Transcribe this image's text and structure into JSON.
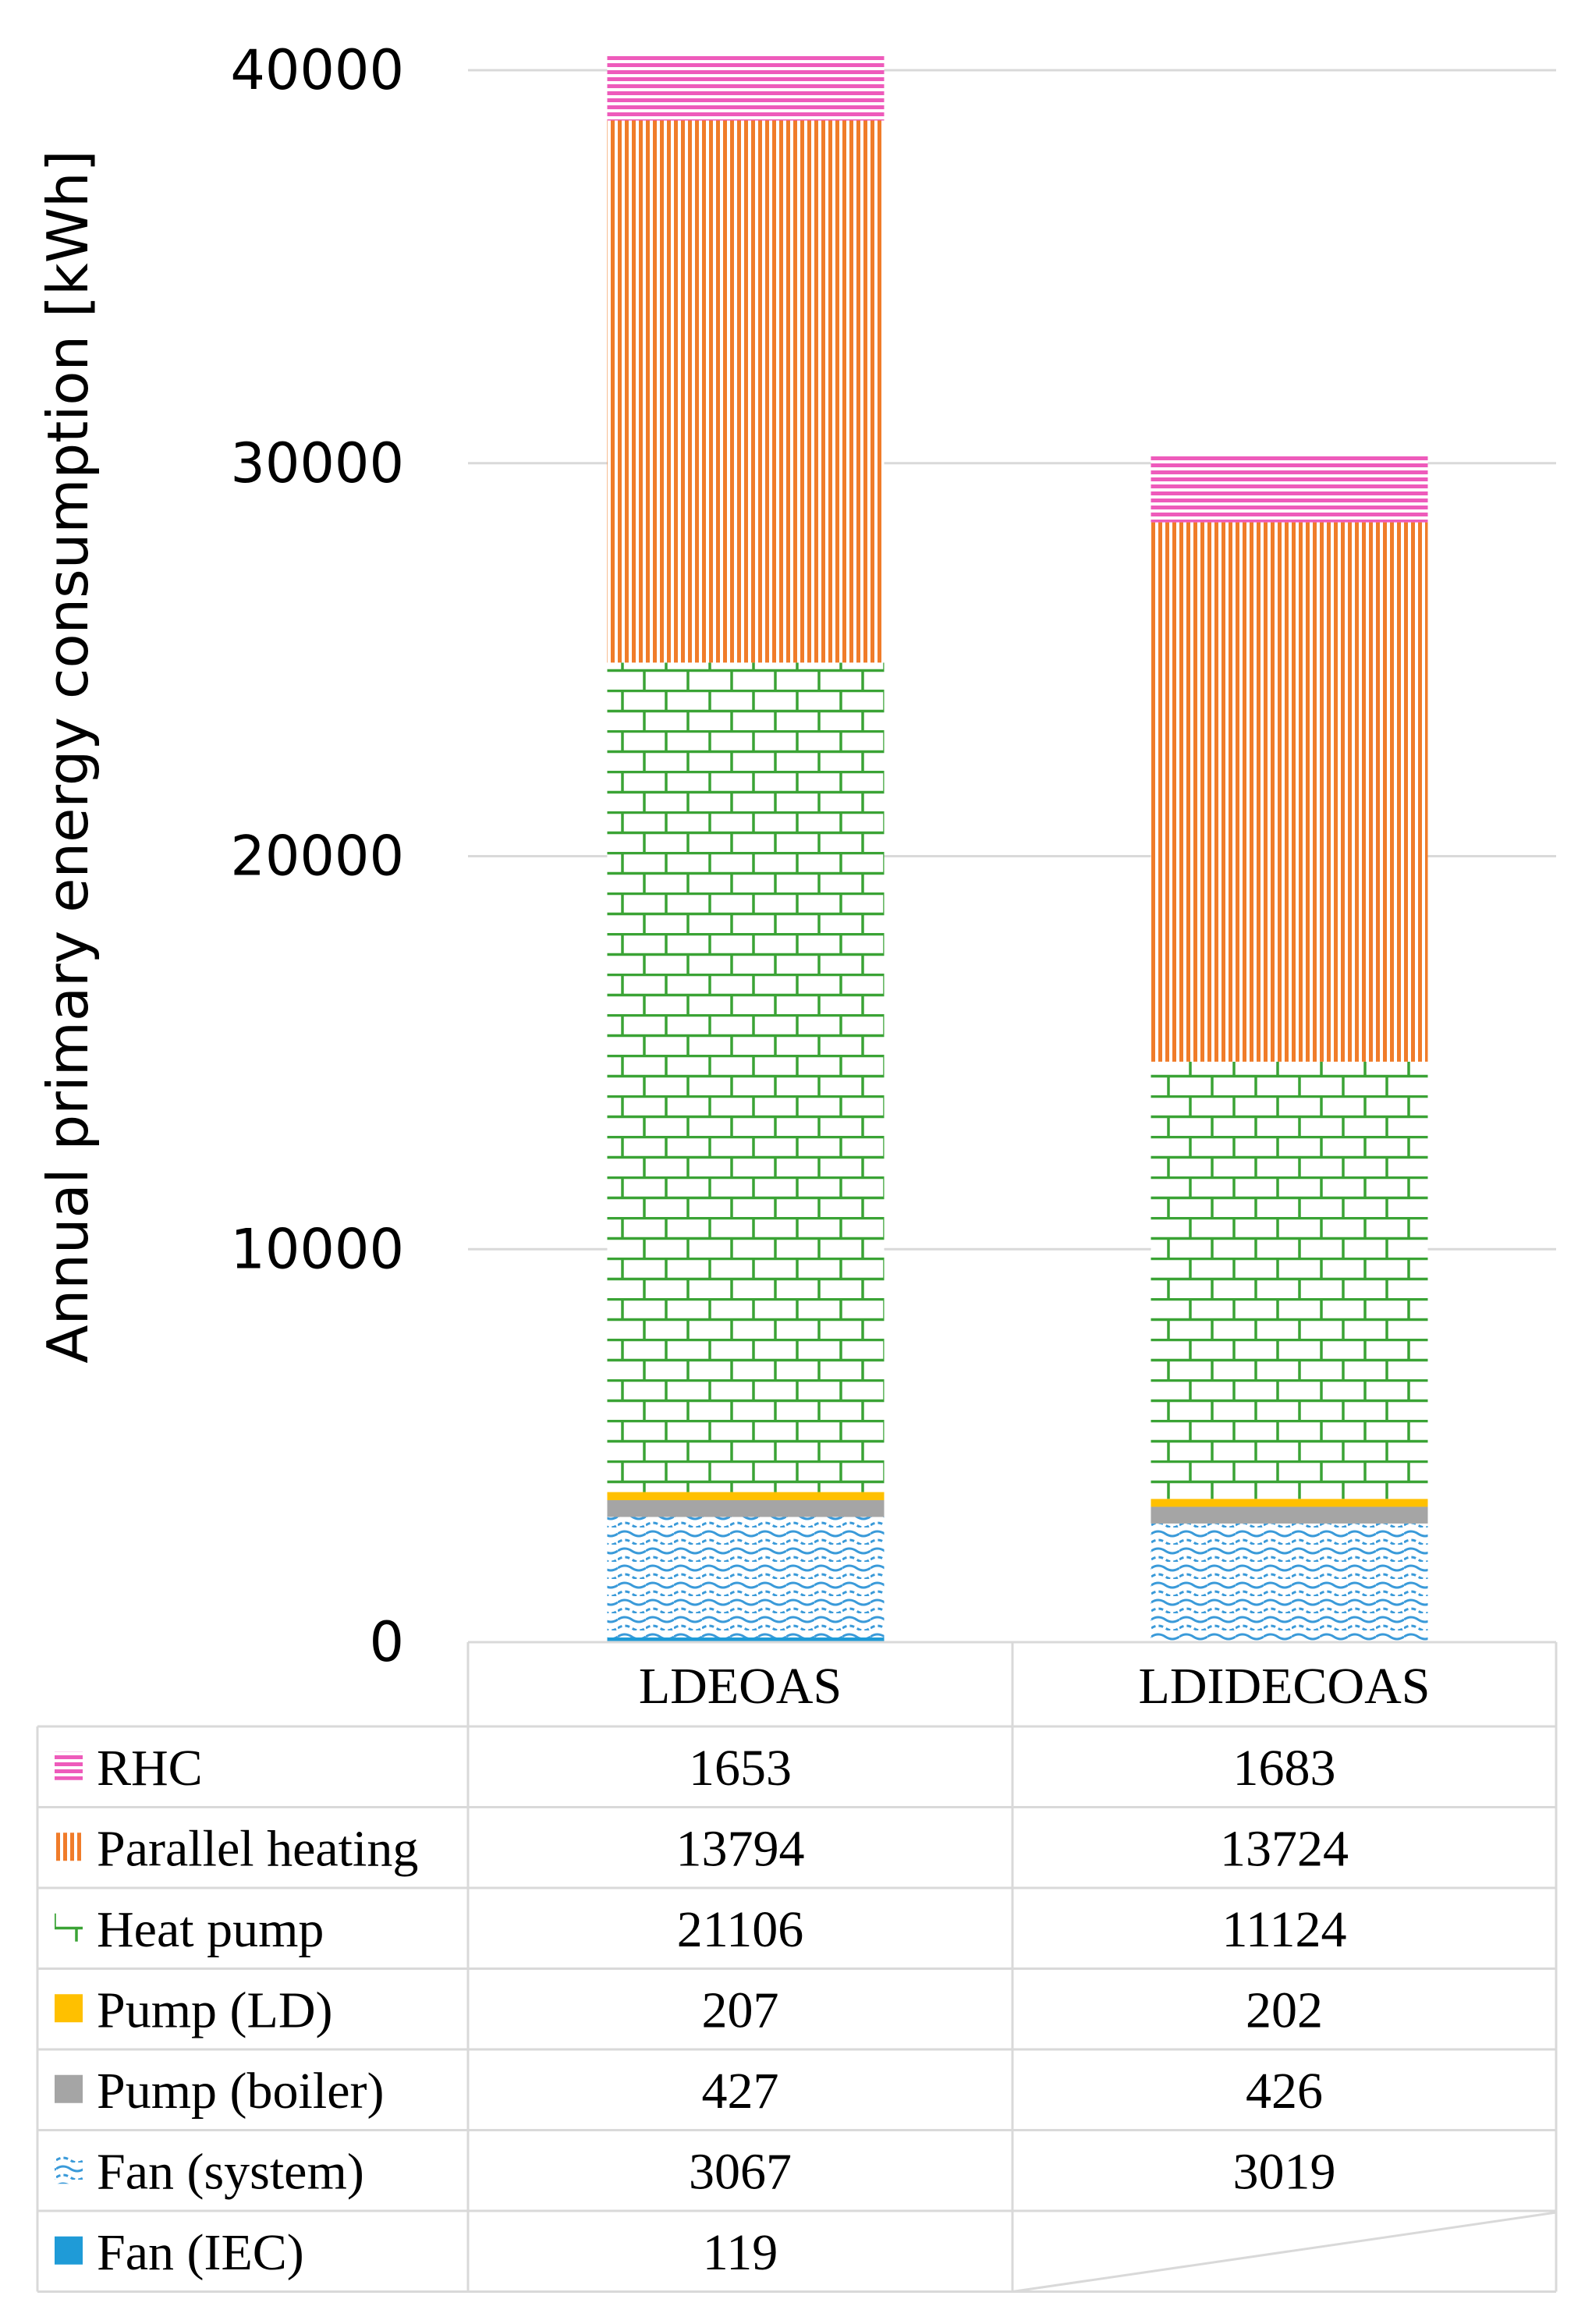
{
  "chart_data": {
    "type": "bar",
    "stacked": true,
    "ylabel": "Annual primary energy consumption [kWh]",
    "ylim": [
      0,
      40000
    ],
    "yticks": [
      0,
      10000,
      20000,
      30000,
      40000
    ],
    "ytick_labels": [
      "0",
      "10000",
      "20000",
      "30000",
      "40000"
    ],
    "grid": true,
    "categories": [
      "LDEOAS",
      "LDIDECOAS"
    ],
    "series": [
      {
        "name": "Fan (IEC)",
        "values": [
          119,
          null
        ],
        "display": [
          "119",
          ""
        ],
        "color": "#1f9bd7",
        "pattern": "solid"
      },
      {
        "name": "Fan (system)",
        "values": [
          3067,
          3019
        ],
        "display": [
          "3067",
          "3019"
        ],
        "color": "#3a9ad9",
        "pattern": "wave"
      },
      {
        "name": "Pump (boiler)",
        "values": [
          427,
          426
        ],
        "display": [
          "427",
          "426"
        ],
        "color": "#a5a5a5",
        "pattern": "solid"
      },
      {
        "name": "Pump (LD)",
        "values": [
          207,
          202
        ],
        "display": [
          "207",
          "202"
        ],
        "color": "#ffc000",
        "pattern": "solid"
      },
      {
        "name": "Heat pump",
        "values": [
          21106,
          11124
        ],
        "display": [
          "21106",
          "11124"
        ],
        "color": "#3aa335",
        "pattern": "brick"
      },
      {
        "name": "Parallel heating",
        "values": [
          13794,
          13724
        ],
        "display": [
          "13794",
          "13724"
        ],
        "color": "#f07c2a",
        "pattern": "vertical"
      },
      {
        "name": "RHC",
        "values": [
          1653,
          1683
        ],
        "display": [
          "1653",
          "1683"
        ],
        "color": "#ee5bbb",
        "pattern": "horizontal"
      }
    ],
    "table_order": [
      "RHC",
      "Parallel heating",
      "Heat pump",
      "Pump (LD)",
      "Pump (boiler)",
      "Fan (system)",
      "Fan (IEC)"
    ]
  }
}
